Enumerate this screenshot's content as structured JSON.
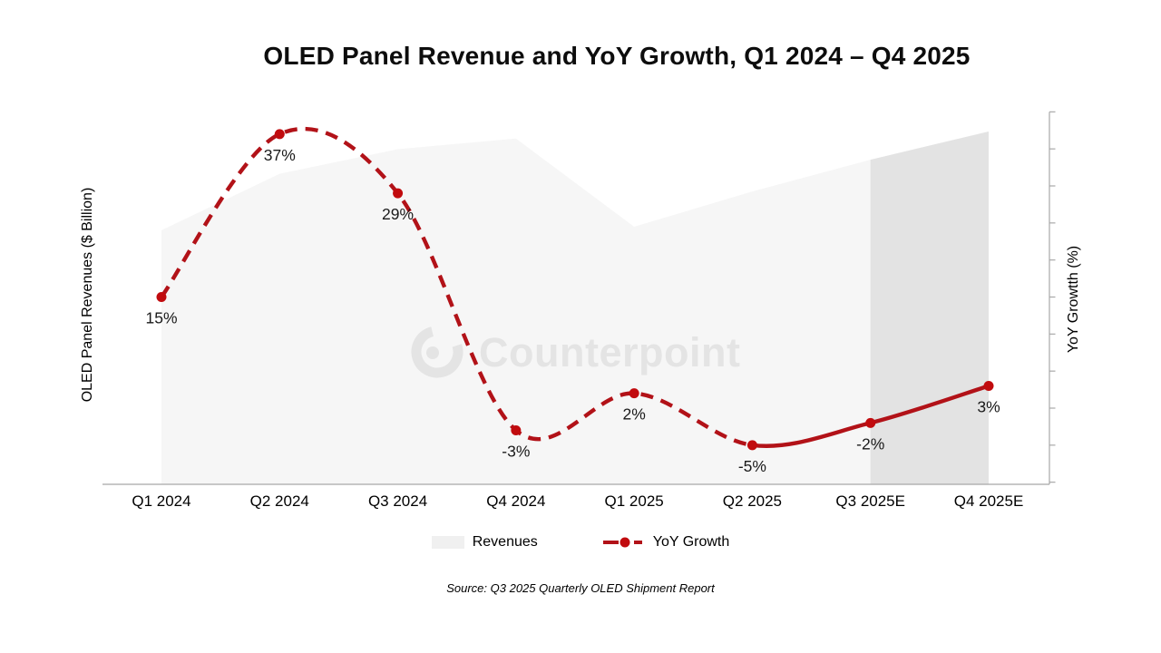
{
  "title": "OLED Panel Revenue and YoY Growth, Q1 2024 – Q4 2025",
  "watermark": {
    "brand": "Counterpoint"
  },
  "source": "Source: Q3 2025 Quarterly OLED Shipment Report",
  "legend": {
    "revenues_label": "Revenues",
    "growth_label": "YoY Growth"
  },
  "axes": {
    "left_title": "OLED Panel Revenues ($ Billion)",
    "right_title": "YoY Growtth (%)"
  },
  "colors": {
    "growth_line": "#b21218",
    "growth_dot": "#c10b0e",
    "area_actual": "#f6f6f6",
    "area_estimate": "#e3e3e3",
    "legend_swatch": "#f0f0f0",
    "axis": "#a8a8a8",
    "watermark": "#e4e4e4"
  },
  "chart_data": {
    "type": "combo",
    "title": "OLED Panel Revenue and YoY Growth, Q1 2024 – Q4 2025",
    "categories": [
      "Q1 2024",
      "Q2 2024",
      "Q3 2024",
      "Q4 2024",
      "Q1 2025",
      "Q2 2025",
      "Q3 2025E",
      "Q4 2025E"
    ],
    "series": [
      {
        "name": "Revenues",
        "type": "area",
        "axis": "left",
        "ylabel": "OLED Panel Revenues ($ Billion)",
        "values_relative_est": [
          72,
          88,
          95,
          98,
          73,
          83,
          92,
          100
        ],
        "note": "left axis shows no numeric ticks; values estimated from area height, max = 100",
        "estimate_shading_from_index": 6
      },
      {
        "name": "YoY Growth",
        "type": "line",
        "axis": "right",
        "ylabel": "YoY Growtth (%)",
        "values": [
          15,
          37,
          29,
          -3,
          2,
          -5,
          -2,
          3
        ],
        "point_labels": [
          "15%",
          "37%",
          "29%",
          "-3%",
          "2%",
          "-5%",
          "-2%",
          "3%"
        ],
        "dashed_segment_range": [
          0,
          5
        ],
        "solid_segment_range": [
          5,
          7
        ]
      }
    ],
    "y2_range": [
      -10,
      40
    ],
    "y2_tick_step": 5,
    "grid": false,
    "legend_position": "bottom"
  }
}
